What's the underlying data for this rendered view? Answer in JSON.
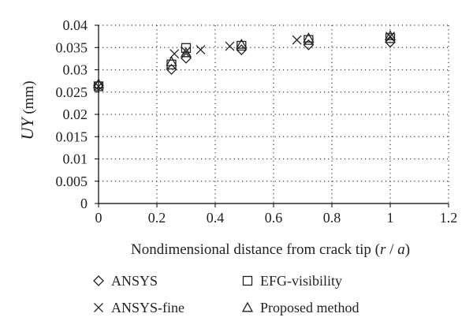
{
  "chart_data": {
    "type": "scatter",
    "xlabel_main": "Nondimensional distance from crack tip (",
    "xlabel_var": "r",
    "xlabel_sep": " / ",
    "xlabel_var2": "a",
    "xlabel_end": ")",
    "ylabel_var": "UY",
    "ylabel_unit": " (mm)",
    "xlim": [
      0,
      1.2
    ],
    "ylim": [
      0,
      0.04
    ],
    "xticks": [
      "0",
      "0.2",
      "0.4",
      "0.6",
      "0.8",
      "1",
      "1.2"
    ],
    "xtick_values": [
      0,
      0.2,
      0.4,
      0.6,
      0.8,
      1.0,
      1.2
    ],
    "yticks": [
      "0",
      "0.005",
      "0.01",
      "0.015",
      "0.02",
      "0.025",
      "0.03",
      "0.035",
      "0.04"
    ],
    "ytick_values": [
      0,
      0.005,
      0.01,
      0.015,
      0.02,
      0.025,
      0.03,
      0.035,
      0.04
    ],
    "grid": "dotted",
    "legend_position": "bottom",
    "series": [
      {
        "name": "ANSYS",
        "marker": "diamond",
        "points": [
          [
            0,
            0.0265
          ],
          [
            0.25,
            0.0301
          ],
          [
            0.3,
            0.0326
          ],
          [
            0.49,
            0.0345
          ],
          [
            0.72,
            0.0356
          ],
          [
            1.0,
            0.0362
          ]
        ]
      },
      {
        "name": "ANSYS-fine",
        "marker": "cross",
        "points": [
          [
            0,
            0.0263
          ],
          [
            0.26,
            0.0336
          ],
          [
            0.3,
            0.0341
          ],
          [
            0.35,
            0.0345
          ],
          [
            0.45,
            0.0353
          ],
          [
            0.68,
            0.0367
          ],
          [
            1.0,
            0.0375
          ]
        ]
      },
      {
        "name": "EFG-visibility",
        "marker": "square",
        "points": [
          [
            0,
            0.0263
          ],
          [
            0.25,
            0.0312
          ],
          [
            0.3,
            0.0349
          ],
          [
            0.49,
            0.0354
          ],
          [
            0.72,
            0.0367
          ],
          [
            1.0,
            0.0371
          ]
        ]
      },
      {
        "name": "Proposed method",
        "marker": "triangle",
        "points": [
          [
            0,
            0.0268
          ],
          [
            0.25,
            0.0318
          ],
          [
            0.3,
            0.0338
          ],
          [
            0.49,
            0.0357
          ],
          [
            0.72,
            0.0371
          ],
          [
            1.0,
            0.0376
          ]
        ]
      }
    ]
  }
}
